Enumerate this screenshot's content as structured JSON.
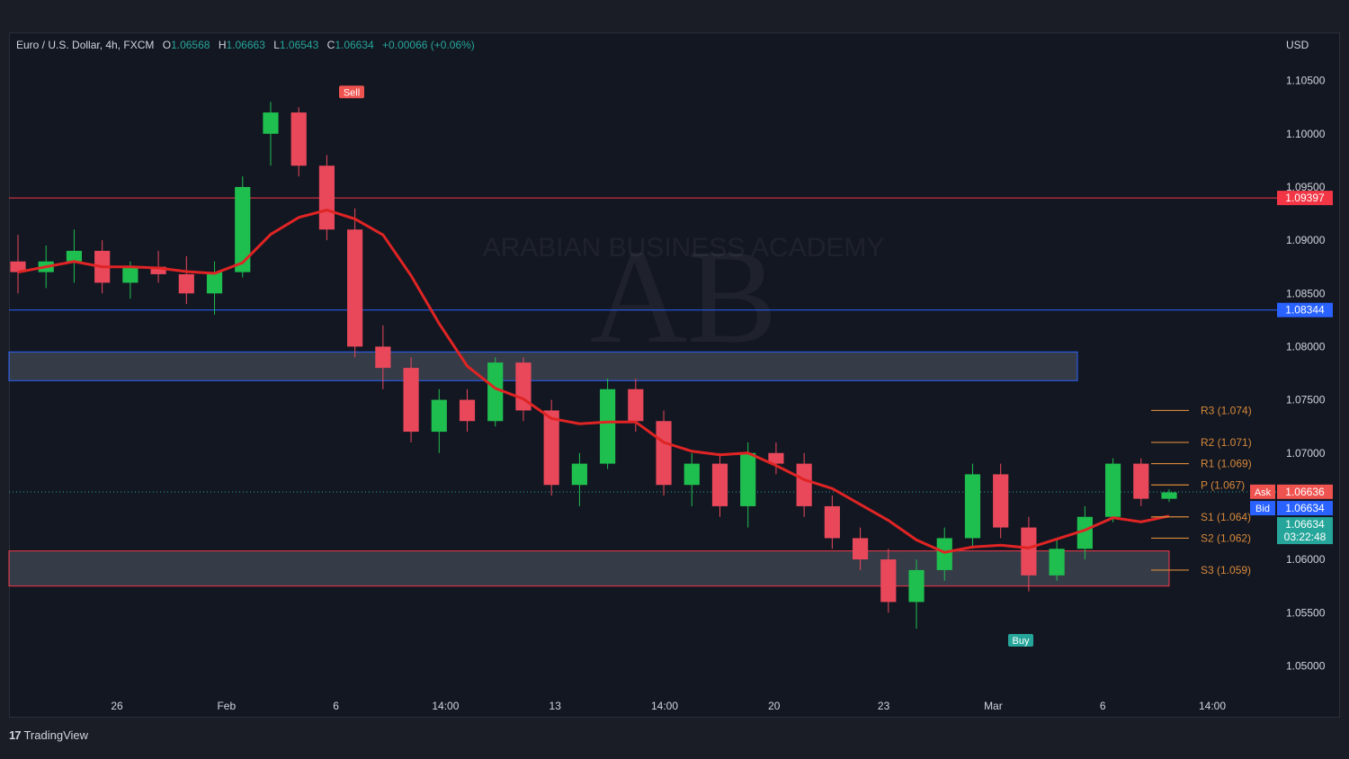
{
  "header": {
    "symbol": "Euro / U.S. Dollar, 4h, FXCM",
    "o_label": "O",
    "o": "1.06568",
    "h_label": "H",
    "h": "1.06663",
    "l_label": "L",
    "l": "1.06543",
    "c_label": "C",
    "c": "1.06634",
    "change": "+0.00066 (+0.06%)"
  },
  "currency": "USD",
  "brand": "TradingView",
  "watermark": {
    "text": "ARABIAN BUSINESS ACADEMY",
    "initials": "AB"
  },
  "colors": {
    "background": "#131722",
    "bull": "#26a69a",
    "bear": "#ef5350",
    "bull_candle": "#1fbf4f",
    "bear_candle": "#e8485a",
    "resistance_line": "#f23645",
    "support_line": "#2962ff",
    "pivot": "#d7893a"
  },
  "chart_data": {
    "type": "candlestick",
    "title": "Euro / U.S. Dollar, 4h, FXCM",
    "ylim": [
      1.0475,
      1.1075
    ],
    "y_ticks": [
      "1.10500",
      "1.10000",
      "1.09500",
      "1.09000",
      "1.08500",
      "1.08000",
      "1.07500",
      "1.07000",
      "1.06000",
      "1.05500",
      "1.05000"
    ],
    "x_ticks": [
      "26",
      "Feb",
      "6",
      "14:00",
      "13",
      "14:00",
      "20",
      "23",
      "Mar",
      "6",
      "14:00"
    ],
    "candles_ohlc_approx": [
      [
        1.088,
        1.0905,
        1.085,
        1.087
      ],
      [
        1.087,
        1.0895,
        1.0855,
        1.088
      ],
      [
        1.088,
        1.091,
        1.086,
        1.089
      ],
      [
        1.089,
        1.09,
        1.085,
        1.086
      ],
      [
        1.086,
        1.088,
        1.0845,
        1.0875
      ],
      [
        1.0875,
        1.089,
        1.086,
        1.0868
      ],
      [
        1.0868,
        1.0885,
        1.084,
        1.085
      ],
      [
        1.085,
        1.088,
        1.083,
        1.087
      ],
      [
        1.087,
        1.096,
        1.0865,
        1.095
      ],
      [
        1.1,
        1.103,
        1.097,
        1.102
      ],
      [
        1.102,
        1.1025,
        1.096,
        1.097
      ],
      [
        1.097,
        1.098,
        1.09,
        1.091
      ],
      [
        1.091,
        1.093,
        1.079,
        1.08
      ],
      [
        1.08,
        1.082,
        1.076,
        1.078
      ],
      [
        1.078,
        1.079,
        1.071,
        1.072
      ],
      [
        1.072,
        1.076,
        1.07,
        1.075
      ],
      [
        1.075,
        1.076,
        1.072,
        1.073
      ],
      [
        1.073,
        1.079,
        1.0725,
        1.0785
      ],
      [
        1.0785,
        1.079,
        1.073,
        1.074
      ],
      [
        1.074,
        1.075,
        1.066,
        1.067
      ],
      [
        1.067,
        1.07,
        1.065,
        1.069
      ],
      [
        1.069,
        1.077,
        1.0685,
        1.076
      ],
      [
        1.076,
        1.077,
        1.072,
        1.073
      ],
      [
        1.073,
        1.074,
        1.066,
        1.067
      ],
      [
        1.067,
        1.07,
        1.065,
        1.069
      ],
      [
        1.069,
        1.07,
        1.064,
        1.065
      ],
      [
        1.065,
        1.071,
        1.063,
        1.07
      ],
      [
        1.07,
        1.071,
        1.068,
        1.069
      ],
      [
        1.069,
        1.07,
        1.064,
        1.065
      ],
      [
        1.065,
        1.066,
        1.061,
        1.062
      ],
      [
        1.062,
        1.063,
        1.059,
        1.06
      ],
      [
        1.06,
        1.061,
        1.055,
        1.056
      ],
      [
        1.056,
        1.06,
        1.0535,
        1.059
      ],
      [
        1.059,
        1.063,
        1.058,
        1.062
      ],
      [
        1.062,
        1.069,
        1.061,
        1.068
      ],
      [
        1.068,
        1.069,
        1.062,
        1.063
      ],
      [
        1.063,
        1.064,
        1.057,
        1.0585
      ],
      [
        1.0585,
        1.062,
        1.058,
        1.061
      ],
      [
        1.061,
        1.065,
        1.06,
        1.064
      ],
      [
        1.064,
        1.0695,
        1.0635,
        1.069
      ],
      [
        1.069,
        1.0695,
        1.065,
        1.0657
      ],
      [
        1.0657,
        1.0666,
        1.0654,
        1.0663
      ]
    ],
    "price_labels": [
      {
        "label": "1.09397",
        "value": 1.09397,
        "color": "#f23645"
      },
      {
        "label": "1.08344",
        "value": 1.08344,
        "color": "#2962ff"
      },
      {
        "label": "1.06636",
        "value": 1.06636,
        "color": "#ef5350",
        "tag": "Ask"
      },
      {
        "label": "1.06634",
        "value": 1.06634,
        "color": "#2962ff",
        "tag": "Bid"
      },
      {
        "label": "1.06634",
        "value": 1.06634,
        "color": "#26a69a",
        "sub": "03:22:48"
      }
    ],
    "pivots": [
      {
        "label": "R3 (1.074)",
        "value": 1.074
      },
      {
        "label": "R2 (1.071)",
        "value": 1.071
      },
      {
        "label": "R1 (1.069)",
        "value": 1.069
      },
      {
        "label": "P (1.067)",
        "value": 1.067
      },
      {
        "label": "S1 (1.064)",
        "value": 1.064
      },
      {
        "label": "S2 (1.062)",
        "value": 1.062
      },
      {
        "label": "S3 (1.059)",
        "value": 1.059
      }
    ],
    "zones": [
      {
        "name": "resistance-zone",
        "from": 1.0768,
        "to": 1.0795
      },
      {
        "name": "support-zone",
        "from": 1.0575,
        "to": 1.0608
      }
    ],
    "signals": [
      {
        "label": "Sell",
        "value": 1.103
      },
      {
        "label": "Buy",
        "value": 1.0535
      }
    ]
  }
}
